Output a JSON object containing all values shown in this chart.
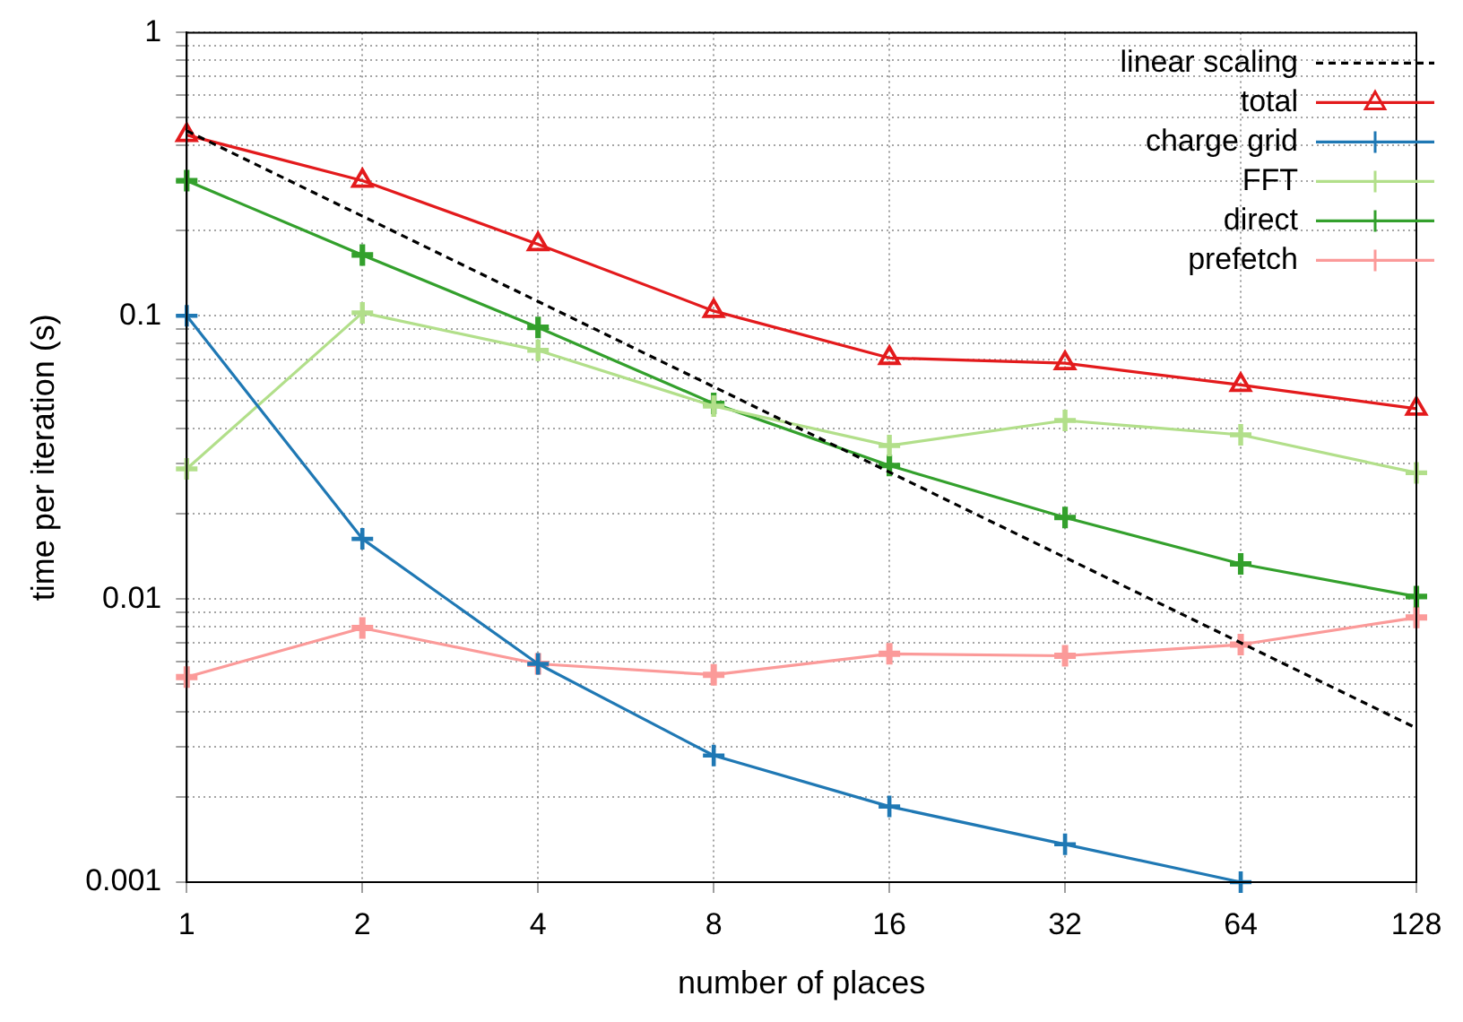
{
  "chart_data": {
    "type": "line",
    "xlabel": "number of places",
    "ylabel": "time per iteration (s)",
    "x": [
      1,
      2,
      4,
      8,
      16,
      32,
      64,
      128
    ],
    "series": [
      {
        "name": "linear scaling",
        "color": "#000000",
        "type": "line",
        "x": [
          1,
          128
        ],
        "values": [
          0.45,
          0.0035
        ],
        "marker": "none",
        "line_style": "dashed"
      },
      {
        "name": "total",
        "color": "#e31a1c",
        "values": [
          0.435,
          0.3,
          0.179,
          0.104,
          0.071,
          0.068,
          0.057,
          0.047
        ],
        "marker": "triangle"
      },
      {
        "name": "charge grid",
        "color": "#1f78b4",
        "values": [
          0.1,
          0.0163,
          0.0059,
          0.0028,
          0.00185,
          0.00136,
          0.001,
          null
        ],
        "marker": "cross"
      },
      {
        "name": "FFT",
        "color": "#b2df8a",
        "values": [
          0.0288,
          0.1025,
          0.0755,
          0.048,
          0.0348,
          0.0427,
          0.038,
          0.0279
        ],
        "marker": "cross"
      },
      {
        "name": "direct",
        "color": "#33a02c",
        "values": [
          0.3,
          0.164,
          0.091,
          0.049,
          0.0296,
          0.0194,
          0.0133,
          0.0102
        ],
        "marker": "cross"
      },
      {
        "name": "prefetch",
        "color": "#fb9a99",
        "values": [
          0.0053,
          0.0079,
          0.0059,
          0.0054,
          0.0064,
          0.0063,
          0.0069,
          0.0086
        ],
        "marker": "cross"
      }
    ],
    "log": "xy",
    "xlim": [
      1,
      128
    ],
    "xticks": [
      1,
      2,
      4,
      8,
      16,
      32,
      64,
      128
    ],
    "ylim": [
      0.001,
      1
    ],
    "yticks": [
      0.001,
      {
        "value": 0.002,
        "label": null
      },
      {
        "value": 0.003,
        "label": null
      },
      {
        "value": 0.004,
        "label": null
      },
      {
        "value": 0.005,
        "label": null
      },
      {
        "value": 0.006,
        "label": null
      },
      {
        "value": 0.007,
        "label": null
      },
      {
        "value": 0.008,
        "label": null
      },
      {
        "value": 0.009,
        "label": null
      },
      0.01,
      {
        "value": 0.02,
        "label": null
      },
      {
        "value": 0.03,
        "label": null
      },
      {
        "value": 0.04,
        "label": null
      },
      {
        "value": 0.05,
        "label": null
      },
      {
        "value": 0.06,
        "label": null
      },
      {
        "value": 0.07,
        "label": null
      },
      {
        "value": 0.08,
        "label": null
      },
      {
        "value": 0.09,
        "label": null
      },
      0.1,
      {
        "value": 0.2,
        "label": null
      },
      {
        "value": 0.3,
        "label": null
      },
      {
        "value": 0.4,
        "label": null
      },
      {
        "value": 0.5,
        "label": null
      },
      {
        "value": 0.6,
        "label": null
      },
      {
        "value": 0.7,
        "label": null
      },
      {
        "value": 0.8,
        "label": null
      },
      {
        "value": 0.9,
        "label": null
      },
      1
    ],
    "grid": true,
    "legend": "top right"
  }
}
